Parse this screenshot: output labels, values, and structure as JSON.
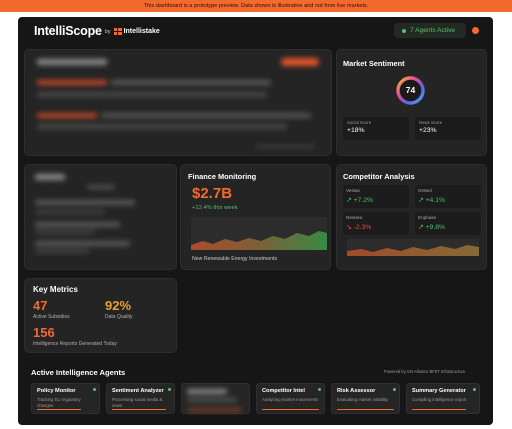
{
  "banner": {
    "text": "This dashboard is a prototype preview. Data shown is illustrative and not from live markets."
  },
  "header": {
    "logo": "IntelliScope",
    "by": "by",
    "brand": "Intellistake",
    "agents_active": "7 Agents Active",
    "accent": "#f26a2e"
  },
  "market_sentiment": {
    "title": "Market Sentiment",
    "score": "74",
    "social_label": "Social Score",
    "social_value": "+18%",
    "news_label": "News Score",
    "news_value": "+23%"
  },
  "finance": {
    "title": "Finance Monitoring",
    "amount": "$2.7B",
    "change": "+12.4% this week",
    "caption": "New Renewable Energy Investments"
  },
  "competitor": {
    "title": "Competitor Analysis",
    "items": [
      {
        "name": "Vestas",
        "value": "↗ +7.2%",
        "trend": "up"
      },
      {
        "name": "Orsted",
        "value": "↗ +4.1%",
        "trend": "up"
      },
      {
        "name": "Nextera",
        "value": "↘ -2.3%",
        "trend": "down"
      },
      {
        "name": "Enphase",
        "value": "↗ +9.8%",
        "trend": "up"
      }
    ]
  },
  "key_metrics": {
    "title": "Key Metrics",
    "subsidies_value": "47",
    "subsidies_label": "Active Subsidies",
    "quality_value": "92%",
    "quality_label": "Data Quality",
    "reports_value": "156",
    "reports_label": "Intelligence Reports Generated Today"
  },
  "agents": {
    "title": "Active Intelligence Agents",
    "powered_by": "Powered by ASI Alliance BFET Infrastructure",
    "list": [
      {
        "name": "Policy Monitor",
        "status": "Tracking EU regulatory changes",
        "progress": 0.7
      },
      {
        "name": "Sentiment Analyzer",
        "status": "Processing social media & news",
        "progress": 0.85
      },
      {
        "name": "Competitor Intel",
        "status": "Analyzing market movements",
        "progress": 0.9
      },
      {
        "name": "Risk Assessor",
        "status": "Evaluating market volatility",
        "progress": 0.9
      },
      {
        "name": "Summary Generator",
        "status": "Compiling intelligence report",
        "progress": 0.8
      }
    ]
  }
}
